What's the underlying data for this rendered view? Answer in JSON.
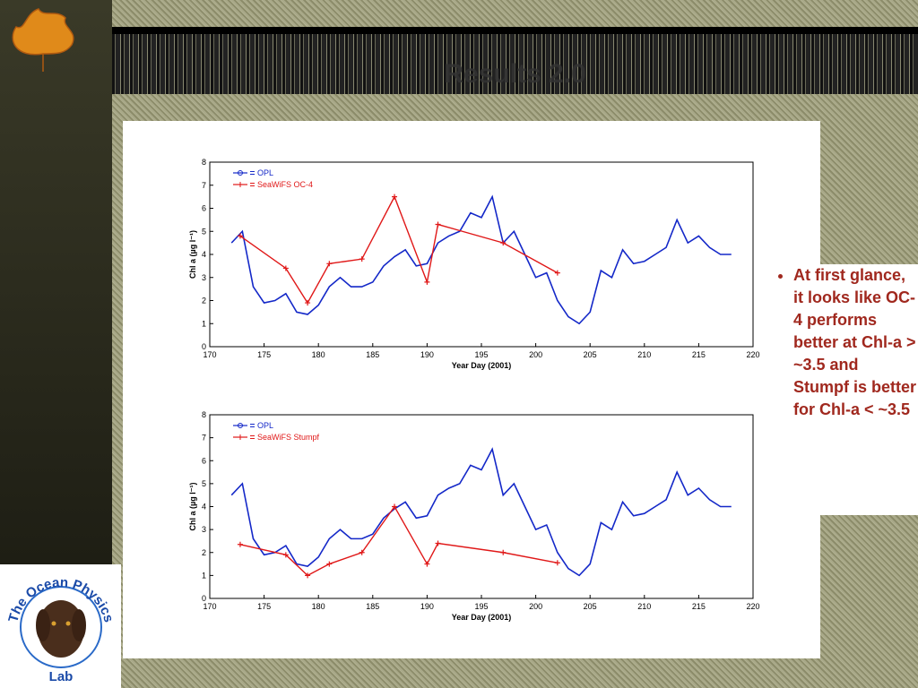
{
  "slide": {
    "title": "Results 2.0",
    "bullet": "At first glance, it looks like OC-4 performs better at Chl-a > ~3.5 and Stumpf is better for Chl-a < ~3.5",
    "logo_top": "The Ocean Physics",
    "logo_bottom": "Lab"
  },
  "chart_data": [
    {
      "type": "line",
      "xlabel": "Year Day (2001)",
      "ylabel": "Chl a (µg l⁻¹)",
      "xlim": [
        170,
        220
      ],
      "xticks": [
        170,
        175,
        180,
        185,
        190,
        195,
        200,
        205,
        210,
        215,
        220
      ],
      "ylim": [
        0,
        8
      ],
      "yticks": [
        0,
        1,
        2,
        3,
        4,
        5,
        6,
        7,
        8
      ],
      "series": [
        {
          "name": "OPL",
          "color": "#1428c8",
          "marker": "o",
          "x": [
            172,
            173,
            174,
            175,
            176,
            177,
            178,
            179,
            180,
            181,
            182,
            183,
            184,
            185,
            186,
            187,
            188,
            189,
            190,
            191,
            192,
            193,
            194,
            195,
            196,
            197,
            198,
            199,
            200,
            201,
            202,
            203,
            204,
            205,
            206,
            207,
            208,
            209,
            210,
            211,
            212,
            213,
            214,
            215,
            216,
            217,
            218
          ],
          "values": [
            4.5,
            5.0,
            2.6,
            1.9,
            2.0,
            2.3,
            1.5,
            1.4,
            1.8,
            2.6,
            3.0,
            2.6,
            2.6,
            2.8,
            3.5,
            3.9,
            4.2,
            3.5,
            3.6,
            4.5,
            4.8,
            5.0,
            5.8,
            5.6,
            6.5,
            4.5,
            5.0,
            4.0,
            3.0,
            3.2,
            2.0,
            1.3,
            1.0,
            1.5,
            3.3,
            3.0,
            4.2,
            3.6,
            3.7,
            4.0,
            4.3,
            5.5,
            4.5,
            4.8,
            4.3,
            4.0,
            4.0
          ]
        },
        {
          "name": "SeaWiFS OC-4",
          "color": "#e01818",
          "marker": "+",
          "x": [
            172.8,
            177,
            179,
            181,
            184,
            187,
            190,
            191,
            197,
            202
          ],
          "values": [
            4.8,
            3.4,
            1.9,
            3.6,
            3.8,
            6.5,
            2.8,
            5.3,
            4.5,
            3.2
          ]
        }
      ]
    },
    {
      "type": "line",
      "xlabel": "Year Day (2001)",
      "ylabel": "Chl a (µg l⁻¹)",
      "xlim": [
        170,
        220
      ],
      "xticks": [
        170,
        175,
        180,
        185,
        190,
        195,
        200,
        205,
        210,
        215,
        220
      ],
      "ylim": [
        0,
        8
      ],
      "yticks": [
        0,
        1,
        2,
        3,
        4,
        5,
        6,
        7,
        8
      ],
      "series": [
        {
          "name": "OPL",
          "color": "#1428c8",
          "marker": "o",
          "x": [
            172,
            173,
            174,
            175,
            176,
            177,
            178,
            179,
            180,
            181,
            182,
            183,
            184,
            185,
            186,
            187,
            188,
            189,
            190,
            191,
            192,
            193,
            194,
            195,
            196,
            197,
            198,
            199,
            200,
            201,
            202,
            203,
            204,
            205,
            206,
            207,
            208,
            209,
            210,
            211,
            212,
            213,
            214,
            215,
            216,
            217,
            218
          ],
          "values": [
            4.5,
            5.0,
            2.6,
            1.9,
            2.0,
            2.3,
            1.5,
            1.4,
            1.8,
            2.6,
            3.0,
            2.6,
            2.6,
            2.8,
            3.5,
            3.9,
            4.2,
            3.5,
            3.6,
            4.5,
            4.8,
            5.0,
            5.8,
            5.6,
            6.5,
            4.5,
            5.0,
            4.0,
            3.0,
            3.2,
            2.0,
            1.3,
            1.0,
            1.5,
            3.3,
            3.0,
            4.2,
            3.6,
            3.7,
            4.0,
            4.3,
            5.5,
            4.5,
            4.8,
            4.3,
            4.0,
            4.0
          ]
        },
        {
          "name": "SeaWiFS Stumpf",
          "color": "#e01818",
          "marker": "+",
          "x": [
            172.8,
            177,
            179,
            181,
            184,
            187,
            190,
            191,
            197,
            202
          ],
          "values": [
            2.35,
            1.9,
            1.0,
            1.5,
            2.0,
            4.0,
            1.5,
            2.4,
            2.0,
            1.55
          ]
        }
      ]
    }
  ]
}
